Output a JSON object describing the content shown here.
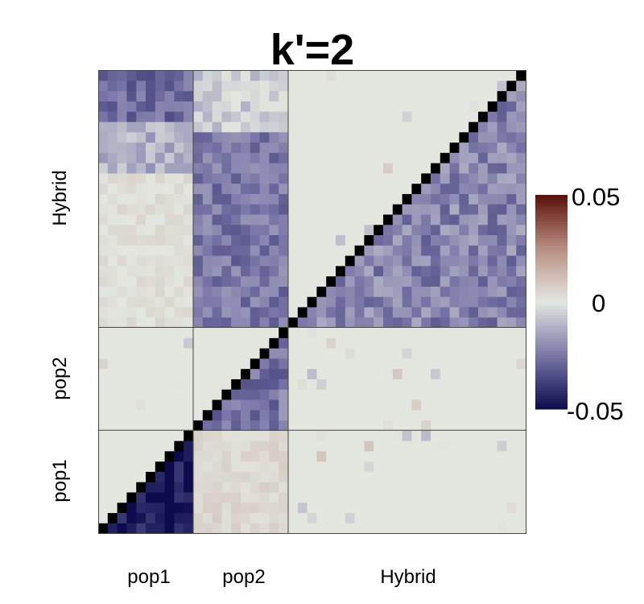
{
  "chart_data": {
    "type": "heatmap",
    "title": "k'=2",
    "groups": [
      {
        "name": "pop1",
        "size": 10
      },
      {
        "name": "pop2",
        "size": 10
      },
      {
        "name": "Hybrid",
        "size": 25
      }
    ],
    "n_individuals": 45,
    "x_tick_labels": [
      "pop1",
      "pop2",
      "Hybrid"
    ],
    "y_tick_labels": [
      "pop1",
      "pop2",
      "Hybrid"
    ],
    "colorbar": {
      "min": -0.05,
      "max": 0.05,
      "tick_labels": [
        "-0.05",
        "0",
        "0.05"
      ],
      "tick_values": [
        -0.05,
        0,
        0.05
      ],
      "colors": {
        "low": "#0b0b4d",
        "mid_low": "#7a76a8",
        "mid": "#e3e7e0",
        "mid_high": "#b98e82",
        "high": "#5a0f08"
      }
    },
    "diagonal_color": "#000000",
    "upper_triangle_block_means": [
      {
        "rows": "pop1",
        "cols": "pop1",
        "value": -0.048
      },
      {
        "rows": "pop2",
        "cols": "pop2",
        "value": -0.025
      },
      {
        "rows": "Hybrid",
        "cols": "Hybrid",
        "value": -0.022
      }
    ],
    "off_diagonal_block_means": [
      {
        "rows": "pop1",
        "cols": "pop2",
        "value": 0.003
      },
      {
        "rows": "pop1",
        "cols": "Hybrid",
        "value": 0.0
      },
      {
        "rows": "pop2",
        "cols": "Hybrid",
        "value": 0.0
      },
      {
        "rows": "pop2",
        "cols": "pop1",
        "value": 0.0
      },
      {
        "rows": "Hybrid",
        "cols": "pop1",
        "value_by_hybrid_band": [
          0.001,
          -0.012,
          -0.028
        ]
      },
      {
        "rows": "Hybrid",
        "cols": "pop2",
        "value_by_hybrid_band": [
          -0.025,
          -0.005
        ]
      },
      {
        "rows": "Hybrid",
        "cols": "Hybrid_lower",
        "value": 0.0
      }
    ]
  }
}
